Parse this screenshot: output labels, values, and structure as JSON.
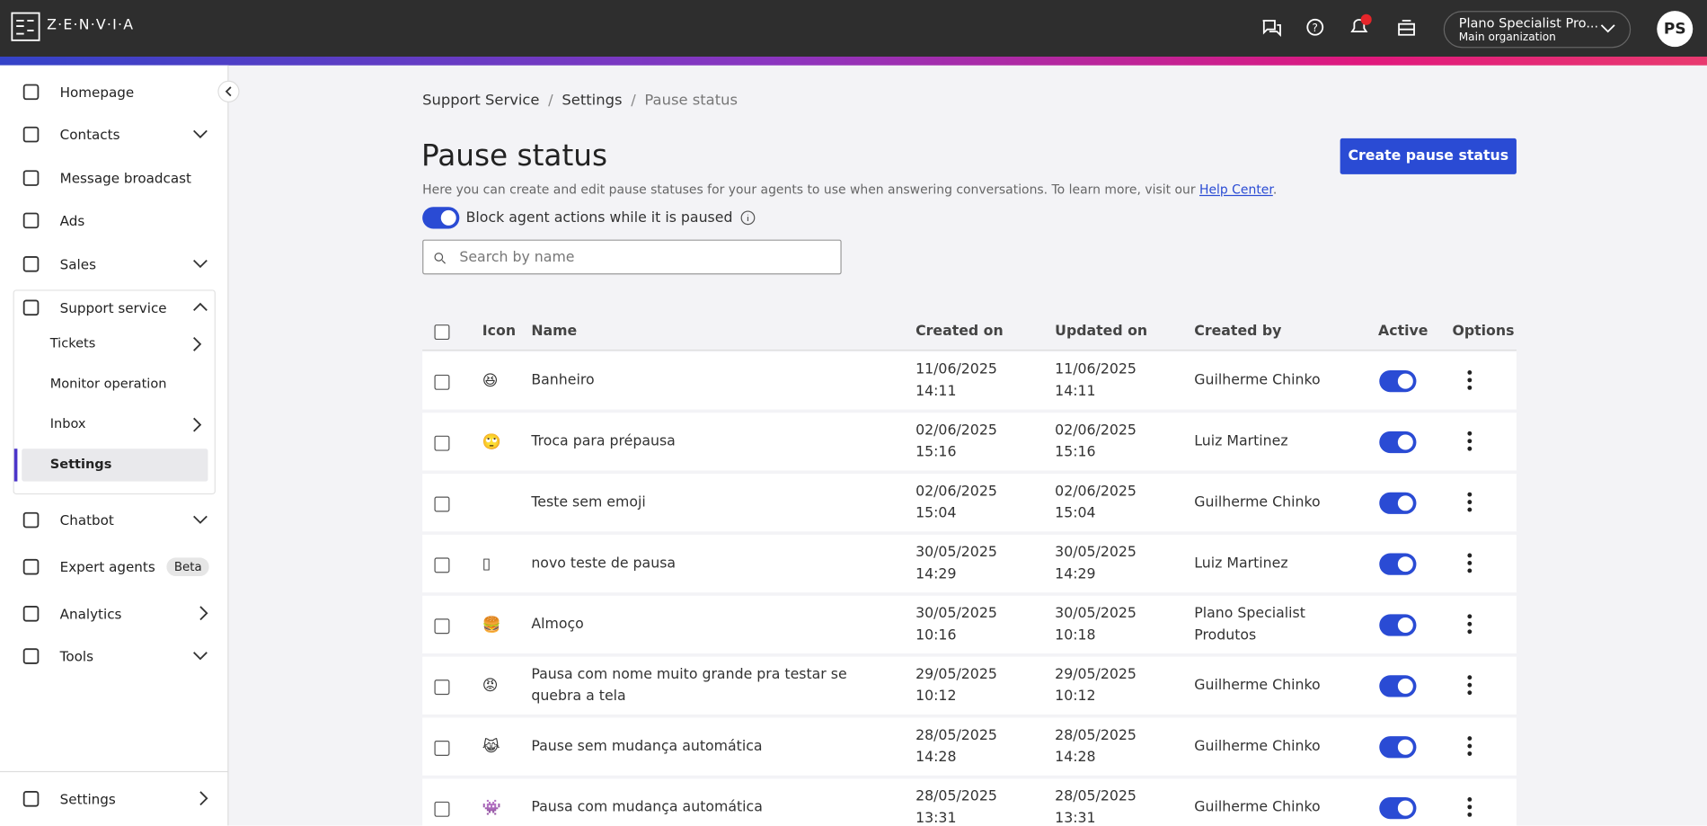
{
  "header": {
    "brand": "Z·E·N·V·I·A",
    "account": "Plano Specialist Pro...",
    "organization": "Main organization",
    "avatar": "PS"
  },
  "sidebar": {
    "items": [
      {
        "label": "Homepage"
      },
      {
        "label": "Contacts",
        "chevron": "down"
      },
      {
        "label": "Message broadcast"
      },
      {
        "label": "Ads"
      },
      {
        "label": "Sales",
        "chevron": "down"
      },
      {
        "label": "Support service",
        "chevron": "up",
        "children": [
          {
            "label": "Tickets",
            "chevron": "right"
          },
          {
            "label": "Monitor operation"
          },
          {
            "label": "Inbox",
            "chevron": "right"
          },
          {
            "label": "Settings",
            "active": true
          }
        ]
      },
      {
        "label": "Chatbot",
        "chevron": "down"
      },
      {
        "label": "Expert agents",
        "badge": "Beta"
      },
      {
        "label": "Analytics",
        "chevron": "right"
      },
      {
        "label": "Tools",
        "chevron": "down"
      }
    ],
    "footer": {
      "label": "Settings",
      "chevron": "right"
    }
  },
  "breadcrumb": [
    "Support Service",
    "Settings",
    "Pause status"
  ],
  "title": "Pause status",
  "description": "Here you can create and edit pause statuses for your agents to use when answering conversations. To learn more, visit our",
  "help_link": "Help Center",
  "create_button": "Create pause status",
  "block_toggle": {
    "label": "Block agent actions while it is paused",
    "on": true
  },
  "search_placeholder": "Search by name",
  "table": {
    "columns": [
      "Icon",
      "Name",
      "Created on",
      "Updated on",
      "Created by",
      "Active",
      "Options"
    ],
    "rows": [
      {
        "icon": "😆",
        "name": "Banheiro",
        "created": "11/06/2025 14:11",
        "updated": "11/06/2025 14:11",
        "by": "Guilherme Chinko",
        "active": true
      },
      {
        "icon": "🙄",
        "name": "Troca para prépausa",
        "created": "02/06/2025 15:16",
        "updated": "02/06/2025 15:16",
        "by": "Luiz Martinez",
        "active": true
      },
      {
        "icon": null,
        "name": "Teste sem emoji",
        "created": "02/06/2025 15:04",
        "updated": "02/06/2025 15:04",
        "by": "Guilherme Chinko",
        "active": true
      },
      {
        "icon": "▯",
        "name": "novo teste de pausa",
        "created": "30/05/2025 14:29",
        "updated": "30/05/2025 14:29",
        "by": "Luiz Martinez",
        "active": true
      },
      {
        "icon": "🍔",
        "name": "Almoço",
        "created": "30/05/2025 10:16",
        "updated": "30/05/2025 10:18",
        "by": "Plano Specialist Produtos",
        "active": true
      },
      {
        "icon": "😡",
        "name": "Pausa com nome muito grande pra testar se quebra a tela",
        "created": "29/05/2025 10:12",
        "updated": "29/05/2025 10:12",
        "by": "Guilherme Chinko",
        "active": true
      },
      {
        "icon": "😹",
        "name": "Pause sem mudança automática",
        "created": "28/05/2025 14:28",
        "updated": "28/05/2025 14:28",
        "by": "Guilherme Chinko",
        "active": true
      },
      {
        "icon": "👾",
        "name": "Pausa com mudança automática",
        "created": "28/05/2025 13:31",
        "updated": "28/05/2025 13:31",
        "by": "Guilherme Chinko",
        "active": true
      }
    ]
  }
}
